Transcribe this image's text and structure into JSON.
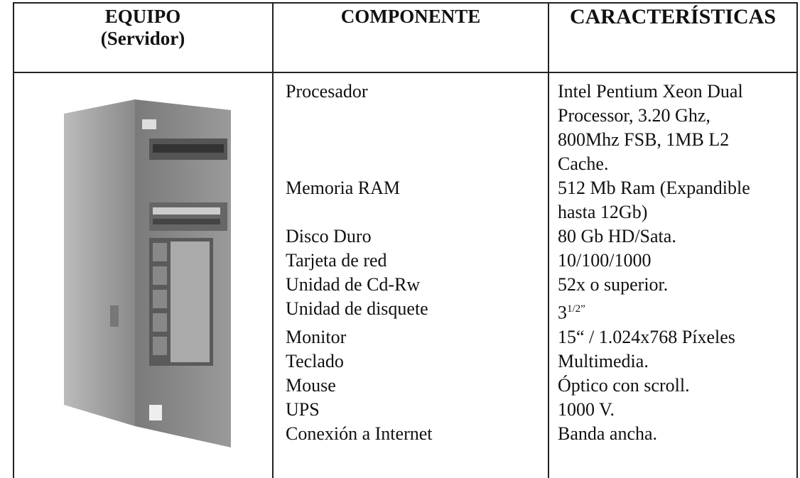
{
  "header": {
    "columns": [
      {
        "title": "EQUIPO",
        "subtitle": "(Servidor)"
      },
      {
        "title": "COMPONENTE"
      },
      {
        "title": "CARACTERÍSTICAS"
      }
    ]
  },
  "table": {
    "rows": [
      {
        "component": "Procesador",
        "characteristics": [
          "Intel Pentium Xeon Dual",
          "Processor, 3.20 Ghz,",
          "800Mhz FSB, 1MB L2",
          "Cache."
        ]
      },
      {
        "component": "Memoria RAM",
        "characteristics": [
          "512 Mb Ram (Expandible",
          "hasta 12Gb)"
        ]
      },
      {
        "component": "Disco Duro",
        "characteristics": [
          "80 Gb HD/Sata."
        ]
      },
      {
        "component": "Tarjeta de red",
        "characteristics": [
          "10/100/1000"
        ]
      },
      {
        "component": "Unidad de Cd-Rw",
        "characteristics": [
          "52x o superior."
        ]
      },
      {
        "component": "Unidad de disquete",
        "characteristics": [
          {
            "base": "3",
            "sup": "1/2”"
          }
        ]
      },
      {
        "component": "Monitor",
        "characteristics": [
          "15“ / 1.024x768 Píxeles"
        ]
      },
      {
        "component": "Teclado",
        "characteristics": [
          "Multimedia."
        ]
      },
      {
        "component": "Mouse",
        "characteristics": [
          "Óptico con scroll."
        ]
      },
      {
        "component": "UPS",
        "characteristics": [
          "1000 V."
        ]
      },
      {
        "component": "Conexión a Internet",
        "characteristics": [
          "Banda ancha."
        ]
      }
    ]
  }
}
